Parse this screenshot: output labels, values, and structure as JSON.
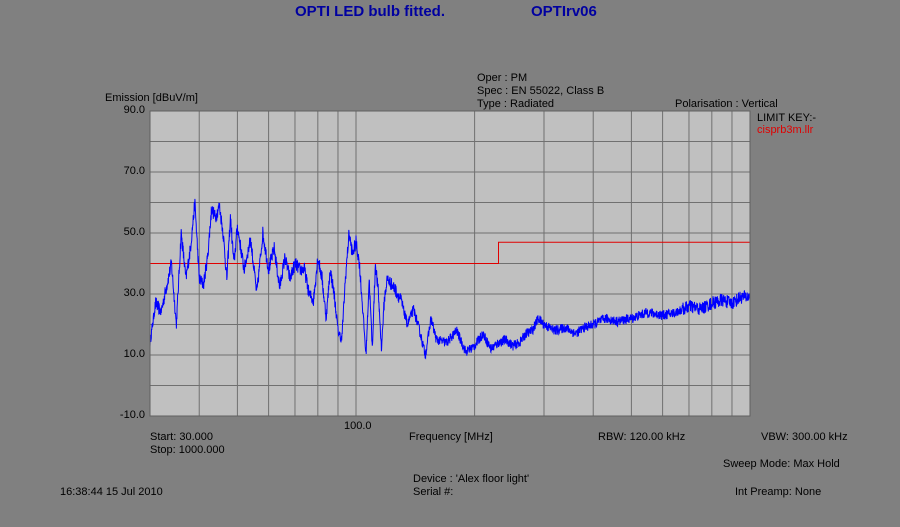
{
  "header": {
    "title": "OPTI LED bulb fitted.",
    "file_id": "OPTIrv06",
    "oper": "Oper : PM",
    "spec": "Spec : EN 55022, Class B",
    "type": "Type : Radiated",
    "polarisation": "Polarisation : Vertical",
    "limit_key_label": "LIMIT KEY:-",
    "limit_name": "cisprb3m.llr"
  },
  "footer": {
    "start": "Start: 30.000",
    "stop": "Stop: 1000.000",
    "frequency_label": "Frequency [MHz]",
    "x_tick_100": "100.0",
    "rbw": "RBW: 120.00 kHz",
    "vbw": "VBW: 300.00 kHz",
    "sweep_mode": "Sweep Mode: Max Hold",
    "device": "Device : 'Alex floor light'",
    "serial": "Serial #:",
    "int_preamp": "Int Preamp: None",
    "timestamp": "16:38:44 15 Jul 2010"
  },
  "colors": {
    "background": "#808080",
    "plot_area": "#c0c0c0",
    "trace": "#0000ff",
    "limit": "#e00000",
    "title": "#0000a0"
  },
  "chart_data": {
    "type": "line",
    "ylabel": "Emission [dBuV/m]",
    "xlabel": "Frequency [MHz]",
    "x_scale": "log",
    "xlim": [
      30,
      1000
    ],
    "ylim": [
      -10,
      90
    ],
    "y_ticks": [
      "90.0",
      "70.0",
      "50.0",
      "30.0",
      "10.0",
      "-10.0"
    ],
    "x_tick_labels": [
      "100.0"
    ],
    "grid": true,
    "series": [
      {
        "kind": "limit",
        "x": [
          30,
          230,
          230,
          1000
        ],
        "values": [
          40,
          40,
          47,
          47
        ]
      },
      {
        "kind": "trace",
        "x": [
          30,
          31,
          32,
          34,
          35,
          36,
          37,
          38,
          39,
          40,
          41,
          42,
          43,
          44,
          45,
          46,
          47,
          48,
          49,
          50,
          52,
          54,
          56,
          58,
          60,
          62,
          64,
          66,
          68,
          70,
          72,
          74,
          76,
          78,
          80,
          82,
          84,
          86,
          88,
          90,
          92,
          94,
          96,
          98,
          100,
          102,
          104,
          106,
          108,
          110,
          112,
          114,
          116,
          118,
          120,
          125,
          130,
          135,
          140,
          145,
          150,
          155,
          160,
          170,
          180,
          190,
          200,
          210,
          220,
          230,
          240,
          250,
          260,
          270,
          280,
          290,
          300,
          320,
          340,
          360,
          380,
          400,
          430,
          460,
          500,
          550,
          600,
          650,
          700,
          750,
          800,
          850,
          900,
          950,
          1000
        ],
        "values": [
          14,
          27,
          24,
          40,
          20,
          50,
          35,
          45,
          60,
          35,
          33,
          42,
          58,
          55,
          59,
          50,
          35,
          55,
          40,
          52,
          38,
          48,
          30,
          50,
          38,
          45,
          32,
          42,
          35,
          40,
          38,
          38,
          30,
          28,
          42,
          35,
          22,
          38,
          30,
          18,
          15,
          35,
          50,
          43,
          47,
          40,
          25,
          10,
          35,
          12,
          40,
          30,
          12,
          28,
          35,
          32,
          28,
          20,
          25,
          18,
          10,
          22,
          15,
          14,
          18,
          11,
          13,
          17,
          12,
          14,
          15,
          13,
          14,
          17,
          18,
          22,
          20,
          18,
          19,
          17,
          19,
          20,
          22,
          21,
          22,
          24,
          23,
          24,
          26,
          25,
          27,
          28,
          27,
          29,
          29
        ]
      }
    ]
  }
}
